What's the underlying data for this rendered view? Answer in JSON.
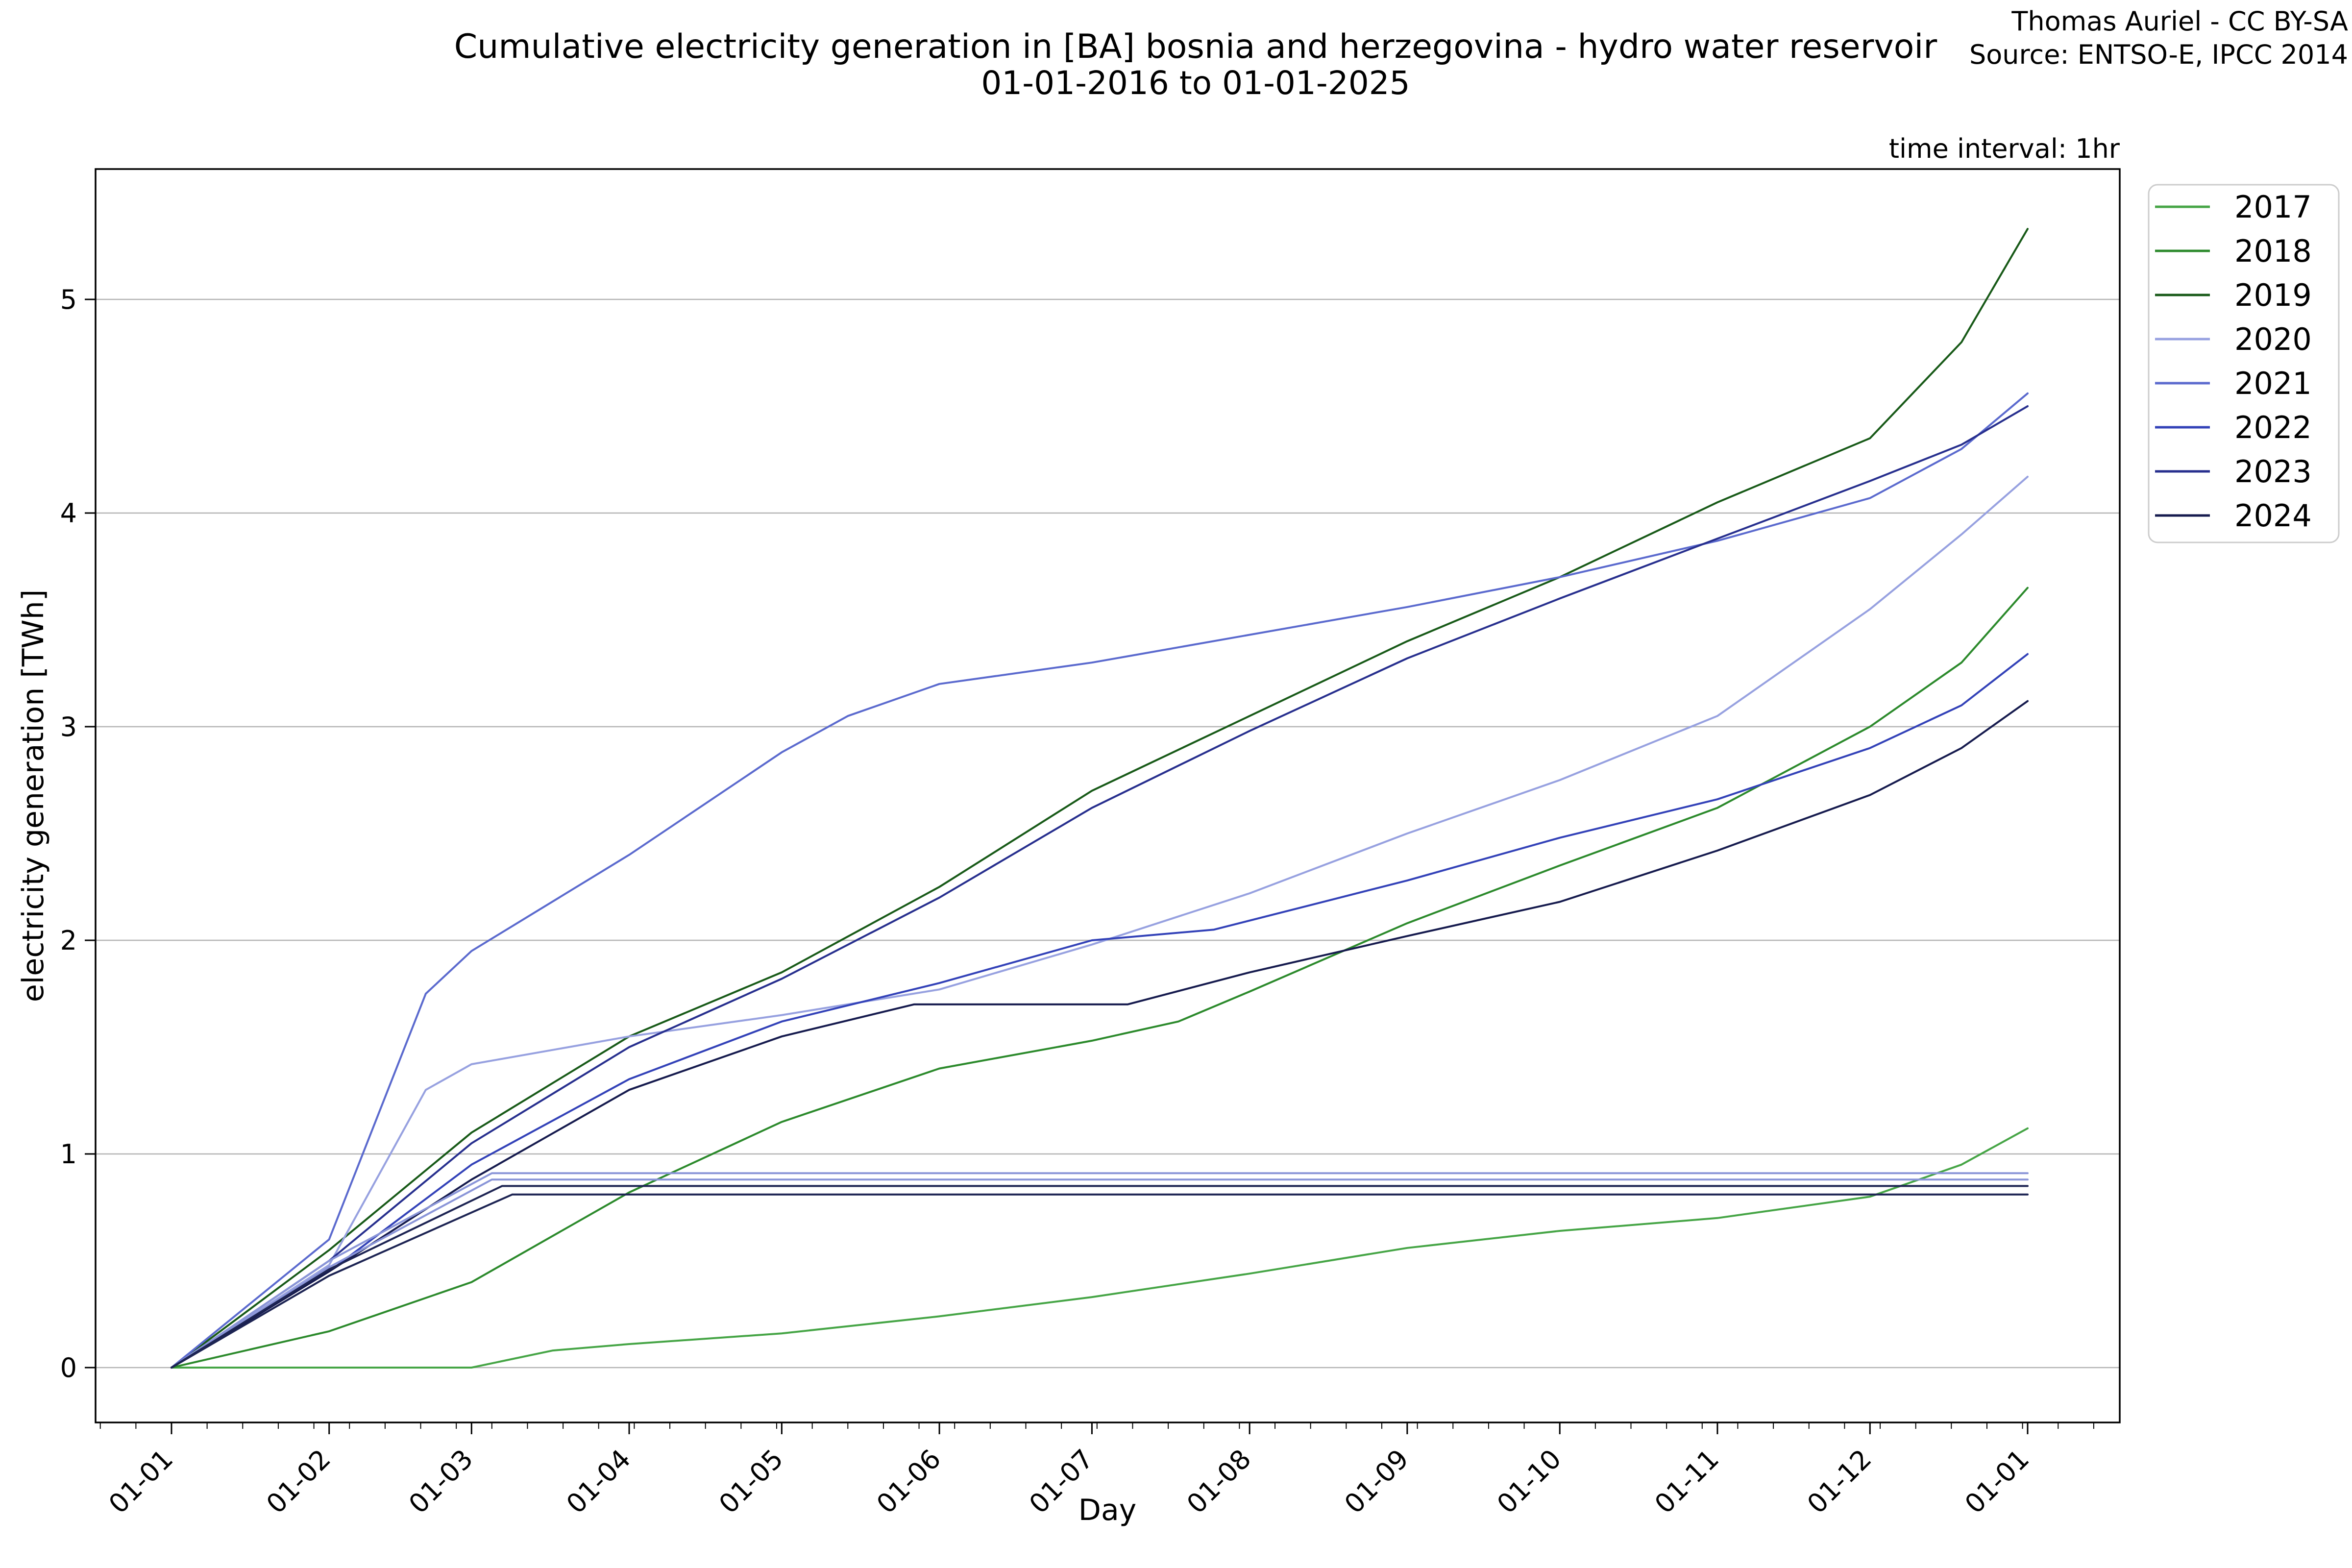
{
  "header": {
    "title_line1": "Cumulative electricity generation in [BA] bosnia and herzegovina - hydro water reservoir",
    "title_line2": "01-01-2016 to 01-01-2025",
    "attribution_line1": "Thomas Auriel - CC BY-SA",
    "attribution_line2": "Source: ENTSO-E, IPCC 2014",
    "time_interval_note": "time interval: 1hr"
  },
  "chart_data": {
    "type": "line",
    "title": "Cumulative electricity generation in [BA] bosnia and herzegovina - hydro water reservoir 01-01-2016 to 01-01-2025",
    "xlabel": "Day",
    "ylabel": "electricity generation [TWh]",
    "x_unit": "day of year (all years overlaid Jan 1 - Jan 1)",
    "x_tick_labels": [
      "01-01",
      "01-02",
      "01-03",
      "01-04",
      "01-05",
      "01-06",
      "01-07",
      "01-08",
      "01-09",
      "01-10",
      "01-11",
      "01-12",
      "01-01"
    ],
    "x_tick_days": [
      0,
      31,
      59,
      90,
      120,
      151,
      181,
      212,
      243,
      273,
      304,
      334,
      365
    ],
    "x_minor_tick_interval_days": 7,
    "y_ticks": [
      0,
      1,
      2,
      3,
      4,
      5
    ],
    "y_tick_labels": [
      "0",
      "1",
      "2",
      "3",
      "4",
      "5"
    ],
    "ylim": [
      -0.26,
      5.61
    ],
    "xlim_days": [
      -15,
      383
    ],
    "grid": "horizontal gray gridlines at integer TWh",
    "legend_position": "outside upper right",
    "colors": {
      "grid": "#b4b4b4",
      "spine": "#000000",
      "legend_border": "#cccccc",
      "background": "#ffffff"
    },
    "series": [
      {
        "name": "2017",
        "color": "#46a546",
        "in_legend": true,
        "points": [
          [
            0,
            0
          ],
          [
            31,
            0
          ],
          [
            59,
            0
          ],
          [
            75,
            0.08
          ],
          [
            90,
            0.11
          ],
          [
            120,
            0.16
          ],
          [
            151,
            0.24
          ],
          [
            181,
            0.33
          ],
          [
            212,
            0.44
          ],
          [
            243,
            0.56
          ],
          [
            273,
            0.64
          ],
          [
            304,
            0.7
          ],
          [
            334,
            0.8
          ],
          [
            352,
            0.95
          ],
          [
            365,
            1.12
          ]
        ]
      },
      {
        "name": "2018",
        "color": "#2c8a2c",
        "in_legend": true,
        "points": [
          [
            0,
            0
          ],
          [
            31,
            0.17
          ],
          [
            59,
            0.4
          ],
          [
            90,
            0.82
          ],
          [
            120,
            1.15
          ],
          [
            151,
            1.4
          ],
          [
            181,
            1.53
          ],
          [
            198,
            1.62
          ],
          [
            212,
            1.76
          ],
          [
            243,
            2.08
          ],
          [
            273,
            2.35
          ],
          [
            304,
            2.62
          ],
          [
            334,
            3.0
          ],
          [
            352,
            3.3
          ],
          [
            365,
            3.65
          ]
        ]
      },
      {
        "name": "2019",
        "color": "#185a18",
        "in_legend": true,
        "points": [
          [
            0,
            0
          ],
          [
            31,
            0.55
          ],
          [
            59,
            1.1
          ],
          [
            90,
            1.55
          ],
          [
            120,
            1.85
          ],
          [
            151,
            2.25
          ],
          [
            181,
            2.7
          ],
          [
            212,
            3.05
          ],
          [
            243,
            3.4
          ],
          [
            273,
            3.7
          ],
          [
            304,
            4.05
          ],
          [
            334,
            4.35
          ],
          [
            352,
            4.8
          ],
          [
            365,
            5.33
          ]
        ]
      },
      {
        "name": "2020",
        "color": "#97a1e0",
        "in_legend": true,
        "points": [
          [
            0,
            0
          ],
          [
            31,
            0.48
          ],
          [
            50,
            1.3
          ],
          [
            59,
            1.42
          ],
          [
            90,
            1.55
          ],
          [
            120,
            1.65
          ],
          [
            151,
            1.77
          ],
          [
            181,
            1.98
          ],
          [
            212,
            2.22
          ],
          [
            243,
            2.5
          ],
          [
            273,
            2.75
          ],
          [
            304,
            3.05
          ],
          [
            334,
            3.55
          ],
          [
            352,
            3.9
          ],
          [
            365,
            4.17
          ]
        ]
      },
      {
        "name": "2021",
        "color": "#5b6ace",
        "in_legend": true,
        "points": [
          [
            0,
            0
          ],
          [
            31,
            0.6
          ],
          [
            50,
            1.75
          ],
          [
            59,
            1.95
          ],
          [
            90,
            2.4
          ],
          [
            120,
            2.88
          ],
          [
            133,
            3.05
          ],
          [
            151,
            3.2
          ],
          [
            181,
            3.3
          ],
          [
            212,
            3.43
          ],
          [
            243,
            3.56
          ],
          [
            273,
            3.7
          ],
          [
            304,
            3.87
          ],
          [
            334,
            4.07
          ],
          [
            352,
            4.3
          ],
          [
            365,
            4.56
          ]
        ]
      },
      {
        "name": "2022",
        "color": "#3342b8",
        "in_legend": true,
        "points": [
          [
            0,
            0
          ],
          [
            31,
            0.45
          ],
          [
            59,
            0.95
          ],
          [
            90,
            1.35
          ],
          [
            120,
            1.62
          ],
          [
            151,
            1.8
          ],
          [
            181,
            2.0
          ],
          [
            205,
            2.05
          ],
          [
            243,
            2.28
          ],
          [
            273,
            2.48
          ],
          [
            304,
            2.66
          ],
          [
            334,
            2.9
          ],
          [
            352,
            3.1
          ],
          [
            365,
            3.34
          ]
        ]
      },
      {
        "name": "2023",
        "color": "#272f8e",
        "in_legend": true,
        "points": [
          [
            0,
            0
          ],
          [
            31,
            0.5
          ],
          [
            59,
            1.05
          ],
          [
            90,
            1.5
          ],
          [
            120,
            1.82
          ],
          [
            151,
            2.2
          ],
          [
            181,
            2.62
          ],
          [
            212,
            2.98
          ],
          [
            243,
            3.32
          ],
          [
            273,
            3.6
          ],
          [
            304,
            3.88
          ],
          [
            334,
            4.15
          ],
          [
            352,
            4.32
          ],
          [
            365,
            4.5
          ]
        ]
      },
      {
        "name": "2024",
        "color": "#161b4e",
        "in_legend": true,
        "points": [
          [
            0,
            0
          ],
          [
            31,
            0.45
          ],
          [
            59,
            0.88
          ],
          [
            90,
            1.3
          ],
          [
            120,
            1.55
          ],
          [
            146,
            1.7
          ],
          [
            188,
            1.7
          ],
          [
            212,
            1.85
          ],
          [
            243,
            2.02
          ],
          [
            273,
            2.18
          ],
          [
            304,
            2.42
          ],
          [
            334,
            2.68
          ],
          [
            352,
            2.9
          ],
          [
            365,
            3.12
          ]
        ]
      },
      {
        "name": "unlabeled-flat-light-1",
        "color": "#8a95d8",
        "in_legend": false,
        "points": [
          [
            0,
            0
          ],
          [
            31,
            0.5
          ],
          [
            63,
            0.91
          ],
          [
            365,
            0.91
          ]
        ]
      },
      {
        "name": "unlabeled-flat-light-2",
        "color": "#8a95d8",
        "in_legend": false,
        "points": [
          [
            0,
            0
          ],
          [
            31,
            0.47
          ],
          [
            63,
            0.88
          ],
          [
            365,
            0.88
          ]
        ]
      },
      {
        "name": "unlabeled-flat-dark-1",
        "color": "#1d2453",
        "in_legend": false,
        "points": [
          [
            0,
            0
          ],
          [
            31,
            0.46
          ],
          [
            65,
            0.85
          ],
          [
            365,
            0.85
          ]
        ]
      },
      {
        "name": "unlabeled-flat-dark-2",
        "color": "#1d2453",
        "in_legend": false,
        "points": [
          [
            0,
            0
          ],
          [
            31,
            0.43
          ],
          [
            67,
            0.81
          ],
          [
            365,
            0.81
          ]
        ]
      }
    ],
    "legend_years": [
      "2017",
      "2018",
      "2019",
      "2020",
      "2021",
      "2022",
      "2023",
      "2024"
    ]
  }
}
